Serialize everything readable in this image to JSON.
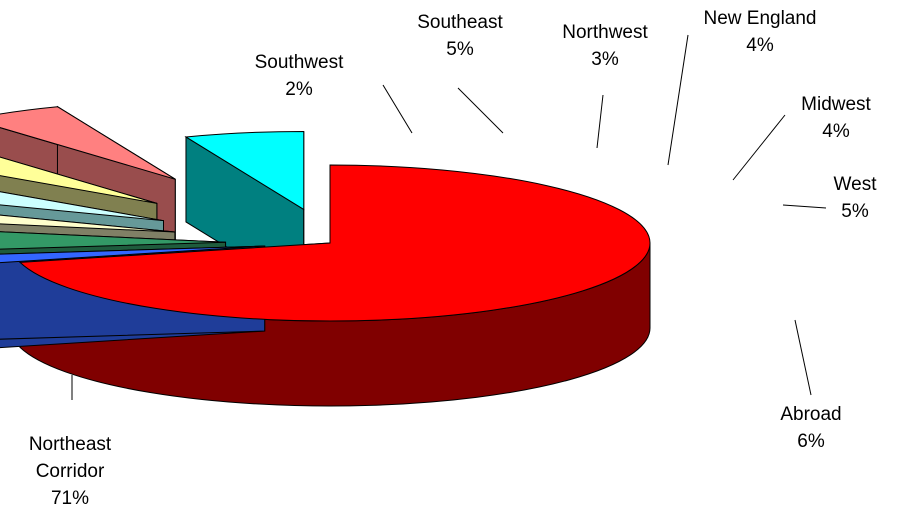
{
  "chart_data": {
    "type": "pie",
    "title": "",
    "categories": [
      "Northeast Corridor",
      "Southwest",
      "Southeast",
      "Northwest",
      "New England",
      "Midwest",
      "West",
      "Abroad"
    ],
    "values": [
      71,
      2,
      5,
      3,
      4,
      4,
      5,
      6
    ],
    "label_lines": [
      [
        "Northeast",
        "Corridor",
        "71%"
      ],
      [
        "Southwest",
        "2%"
      ],
      [
        "Southeast",
        "5%"
      ],
      [
        "Northwest",
        "3%"
      ],
      [
        "New England",
        "4%"
      ],
      [
        "Midwest",
        "4%"
      ],
      [
        "West",
        "5%"
      ],
      [
        "Abroad",
        "6%"
      ]
    ],
    "colors": [
      "#ff0000",
      "#3366ff",
      "#339966",
      "#ffffcc",
      "#ccffff",
      "#ffff99",
      "#ff8080",
      "#00ffff"
    ],
    "side_colors": [
      "#800000",
      "#1f3d99",
      "#1f5c3d",
      "#808066",
      "#669999",
      "#808050",
      "#994d4d",
      "#008080"
    ],
    "style": "3d-exploded",
    "legend": "none"
  }
}
